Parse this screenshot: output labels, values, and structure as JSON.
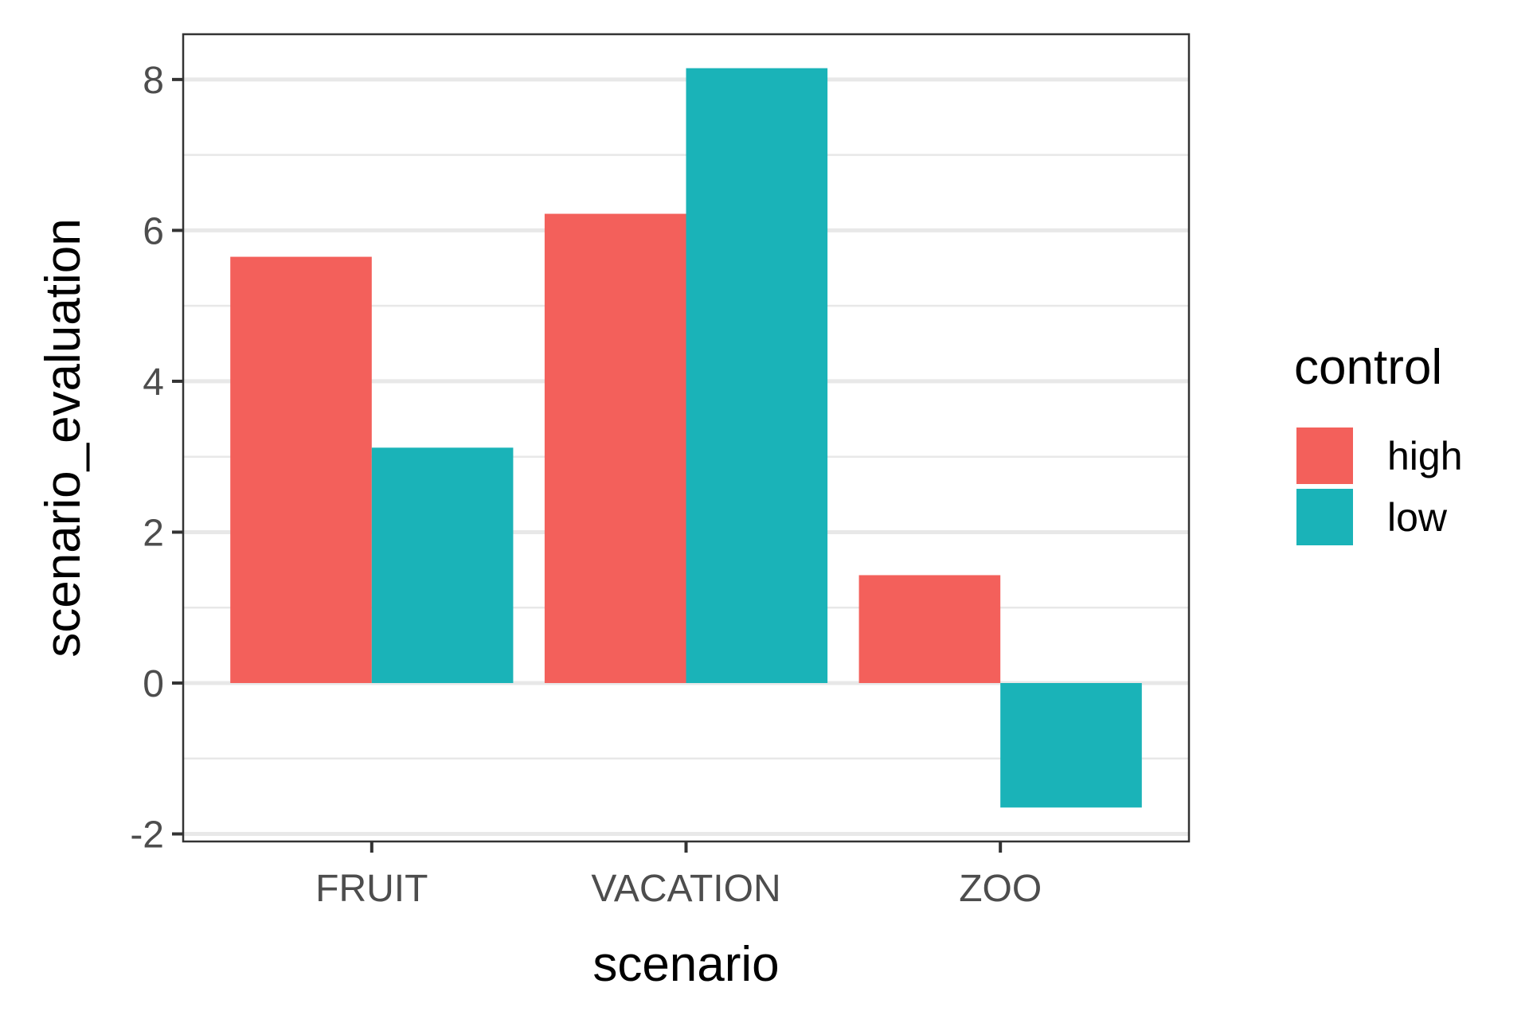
{
  "chart_data": {
    "type": "bar",
    "title": "",
    "xlabel": "scenario",
    "ylabel": "scenario_evaluation",
    "categories": [
      "FRUIT",
      "VACATION",
      "ZOO"
    ],
    "series": [
      {
        "name": "high",
        "color": "#F8766D",
        "values": [
          5.65,
          6.22,
          1.43
        ]
      },
      {
        "name": "low",
        "color": "#00BFC4",
        "values": [
          3.12,
          8.15,
          -1.65
        ]
      }
    ],
    "ylim": [
      -2.1,
      8.6
    ],
    "yticks": [
      -2,
      0,
      2,
      4,
      6,
      8
    ],
    "ytick_labels": [
      "-2",
      "0",
      "2",
      "4",
      "6",
      "8"
    ],
    "grid": true,
    "legend": {
      "title": "control",
      "position": "right",
      "entries": [
        "high",
        "low"
      ]
    }
  },
  "colors": {
    "high": "#F3605B",
    "low": "#1AB3B8",
    "grid": "#E8E8E8",
    "frame": "#333333",
    "tick_text": "#4d4d4d"
  }
}
